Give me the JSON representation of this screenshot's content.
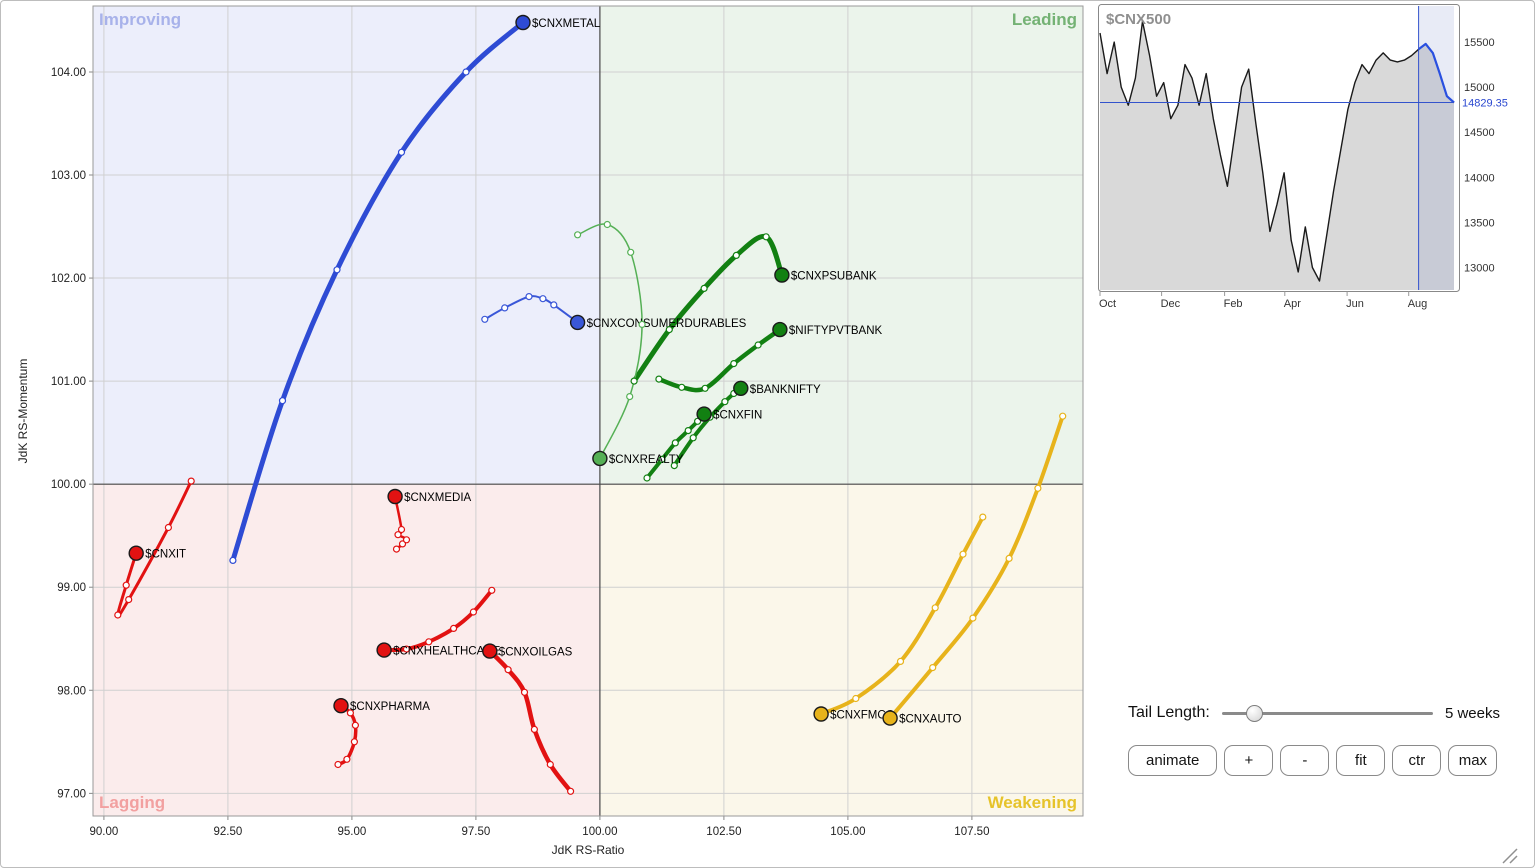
{
  "controls": {
    "tail_length_label": "Tail Length:",
    "tail_length_value": "5 weeks",
    "buttons": [
      {
        "id": "animate",
        "label": "animate"
      },
      {
        "id": "zoom-in",
        "label": "+"
      },
      {
        "id": "zoom-out",
        "label": "-"
      },
      {
        "id": "fit",
        "label": "fit"
      },
      {
        "id": "center",
        "label": "ctr"
      },
      {
        "id": "max",
        "label": "max"
      }
    ]
  },
  "chart_data": [
    {
      "type": "scatter",
      "name": "relative-rotation-graph",
      "xlabel": "JdK RS-Ratio",
      "ylabel": "JdK RS-Momentum",
      "x_ticks": [
        "90.00",
        "92.50",
        "95.00",
        "97.50",
        "100.00",
        "102.50",
        "105.00",
        "107.50"
      ],
      "y_ticks": [
        "97.00",
        "98.00",
        "99.00",
        "100.00",
        "101.00",
        "102.00",
        "103.00",
        "104.00"
      ],
      "xlim": [
        89.78,
        109.74
      ],
      "ylim": [
        96.78,
        104.64
      ],
      "center": [
        100,
        100
      ],
      "grid": true,
      "quadrants": {
        "improving": {
          "label": "Improving",
          "color": "#eceefb",
          "label_color": "#a8b2ea"
        },
        "leading": {
          "label": "Leading",
          "color": "#ebf4eb",
          "label_color": "#74b274"
        },
        "lagging": {
          "label": "Lagging",
          "color": "#fbecec",
          "label_color": "#f2a0a0"
        },
        "weakening": {
          "label": "Weakening",
          "color": "#fbf7ea",
          "label_color": "#e6c32a"
        }
      },
      "series": [
        {
          "name": "$CNXMETAL",
          "color": "#2e4bd4",
          "width": 5,
          "points": [
            [
              92.6,
              99.26
            ],
            [
              93.6,
              100.81
            ],
            [
              94.7,
              102.08
            ],
            [
              96.0,
              103.22
            ],
            [
              97.3,
              104.0
            ],
            [
              98.45,
              104.48
            ]
          ]
        },
        {
          "name": "$CNXCONSUMERDURABLES",
          "color": "#3a57d8",
          "width": 2,
          "points": [
            [
              97.68,
              101.6
            ],
            [
              98.08,
              101.71
            ],
            [
              98.57,
              101.82
            ],
            [
              98.85,
              101.8
            ],
            [
              99.07,
              101.74
            ],
            [
              99.55,
              101.57
            ]
          ]
        },
        {
          "name": "$CNXPSUBANK",
          "color": "#128012",
          "width": 5,
          "points": [
            [
              100.69,
              101.0
            ],
            [
              101.4,
              101.5
            ],
            [
              102.1,
              101.9
            ],
            [
              102.75,
              102.22
            ],
            [
              103.35,
              102.4
            ],
            [
              103.67,
              102.03
            ]
          ]
        },
        {
          "name": "$NIFTYPVTBANK",
          "color": "#128012",
          "width": 4.5,
          "points": [
            [
              101.19,
              101.02
            ],
            [
              101.65,
              100.94
            ],
            [
              102.12,
              100.93
            ],
            [
              102.7,
              101.17
            ],
            [
              103.19,
              101.35
            ],
            [
              103.63,
              101.5
            ]
          ]
        },
        {
          "name": "$BANKNIFTY",
          "color": "#128012",
          "width": 4,
          "points": [
            [
              101.5,
              100.18
            ],
            [
              101.88,
              100.45
            ],
            [
              102.22,
              100.65
            ],
            [
              102.52,
              100.8
            ],
            [
              102.7,
              100.88
            ],
            [
              102.84,
              100.93
            ]
          ]
        },
        {
          "name": "$CNXFIN",
          "color": "#128012",
          "width": 4,
          "points": [
            [
              100.95,
              100.06
            ],
            [
              101.25,
              100.24
            ],
            [
              101.52,
              100.4
            ],
            [
              101.78,
              100.52
            ],
            [
              101.97,
              100.61
            ],
            [
              102.1,
              100.68
            ]
          ]
        },
        {
          "name": "$CNXREALTY",
          "color": "#55b055",
          "width": 1.5,
          "points": [
            [
              99.55,
              102.42
            ],
            [
              100.15,
              102.52
            ],
            [
              100.62,
              102.25
            ],
            [
              100.85,
              101.55
            ],
            [
              100.6,
              100.85
            ],
            [
              100.0,
              100.25
            ]
          ]
        },
        {
          "name": "$CNXMEDIA",
          "color": "#e21212",
          "width": 2.5,
          "points": [
            [
              96.02,
              99.42
            ],
            [
              95.9,
              99.37
            ],
            [
              96.1,
              99.46
            ],
            [
              95.93,
              99.51
            ],
            [
              96.0,
              99.56
            ],
            [
              95.87,
              99.88
            ]
          ]
        },
        {
          "name": "$CNXIT",
          "color": "#e21212",
          "width": 3,
          "points": [
            [
              91.76,
              100.03
            ],
            [
              91.3,
              99.58
            ],
            [
              90.5,
              98.88
            ],
            [
              90.28,
              98.73
            ],
            [
              90.45,
              99.02
            ],
            [
              90.65,
              99.33
            ]
          ]
        },
        {
          "name": "$CNXHEALTHCARE",
          "color": "#e21212",
          "width": 4,
          "points": [
            [
              97.82,
              98.97
            ],
            [
              97.45,
              98.76
            ],
            [
              97.05,
              98.6
            ],
            [
              96.55,
              98.47
            ],
            [
              96.1,
              98.4
            ],
            [
              95.65,
              98.39
            ]
          ]
        },
        {
          "name": "$CNXOILGAS",
          "color": "#e21212",
          "width": 4.5,
          "points": [
            [
              99.41,
              97.02
            ],
            [
              99.0,
              97.28
            ],
            [
              98.68,
              97.62
            ],
            [
              98.48,
              97.98
            ],
            [
              98.15,
              98.2
            ],
            [
              97.78,
              98.38
            ]
          ]
        },
        {
          "name": "$CNXPHARMA",
          "color": "#e21212",
          "width": 3.5,
          "points": [
            [
              94.72,
              97.28
            ],
            [
              94.9,
              97.33
            ],
            [
              95.05,
              97.5
            ],
            [
              95.07,
              97.66
            ],
            [
              94.97,
              97.78
            ],
            [
              94.78,
              97.85
            ]
          ]
        },
        {
          "name": "$CNXFMCG",
          "color": "#e7b31b",
          "width": 4,
          "points": [
            [
              107.72,
              99.68
            ],
            [
              107.32,
              99.32
            ],
            [
              106.76,
              98.8
            ],
            [
              106.06,
              98.28
            ],
            [
              105.16,
              97.92
            ],
            [
              104.46,
              97.77
            ]
          ]
        },
        {
          "name": "$CNXAUTO",
          "color": "#e7b31b",
          "width": 4,
          "points": [
            [
              109.33,
              100.66
            ],
            [
              108.83,
              99.96
            ],
            [
              108.25,
              99.28
            ],
            [
              107.52,
              98.7
            ],
            [
              106.71,
              98.22
            ],
            [
              105.85,
              97.73
            ]
          ]
        }
      ]
    },
    {
      "type": "area",
      "name": "benchmark",
      "title": "$CNX500",
      "current_value": "14829.35",
      "tail_weeks": 5,
      "ylim": [
        12750,
        15900
      ],
      "y_ticks": [
        15500,
        15000,
        14500,
        14000,
        13500,
        13000
      ],
      "x_labels": [
        {
          "label": "Oct",
          "week": 0
        },
        {
          "label": "Dec",
          "week": 8.7
        },
        {
          "label": "Feb",
          "week": 17.6
        },
        {
          "label": "Apr",
          "week": 26.1
        },
        {
          "label": "Jun",
          "week": 34.9
        },
        {
          "label": "Aug",
          "week": 43.6
        }
      ],
      "values": [
        15600,
        15150,
        15500,
        15000,
        14800,
        15100,
        15730,
        15350,
        14900,
        15050,
        14650,
        14800,
        15250,
        15100,
        14800,
        15150,
        14650,
        14250,
        13900,
        14450,
        15000,
        15200,
        14600,
        14050,
        13400,
        13700,
        14050,
        13300,
        12950,
        13450,
        13000,
        12850,
        13350,
        13850,
        14300,
        14750,
        15050,
        15250,
        15150,
        15300,
        15380,
        15300,
        15280,
        15300,
        15350,
        15420,
        15480,
        15380,
        15150,
        14900,
        14829.35
      ],
      "accent_color": "#2a50e0",
      "fill_color": "#d9d9d9",
      "line_color": "#1a1a1a"
    }
  ]
}
